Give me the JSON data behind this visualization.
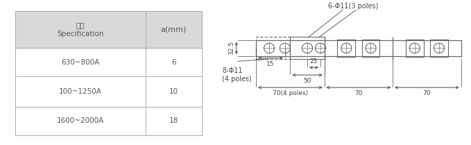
{
  "table": {
    "header_col1": "规格\nSpecification",
    "header_col2": "a(mm)",
    "rows": [
      [
        "630~800A",
        "6"
      ],
      [
        "100~1250A",
        "10"
      ],
      [
        "1600~2000A",
        "18"
      ]
    ],
    "header_bg": "#d9d9d9",
    "line_color": "#aaaaaa",
    "text_color": "#555555",
    "font_size": 7.5
  },
  "diagram": {
    "label_6phi": "6-Φ11(3 poles)",
    "label_8phi": "8-Φ11\n(4 poles)",
    "dim_32_5": "32.5",
    "dim_15": "15",
    "dim_25": "25",
    "dim_50": "50",
    "dim_70_4poles": "70(4 poles)",
    "dim_70a": "70",
    "dim_70b": "70",
    "line_color": "#666666",
    "text_color": "#444444",
    "font_size": 6.5
  },
  "bg_color": "#ffffff"
}
